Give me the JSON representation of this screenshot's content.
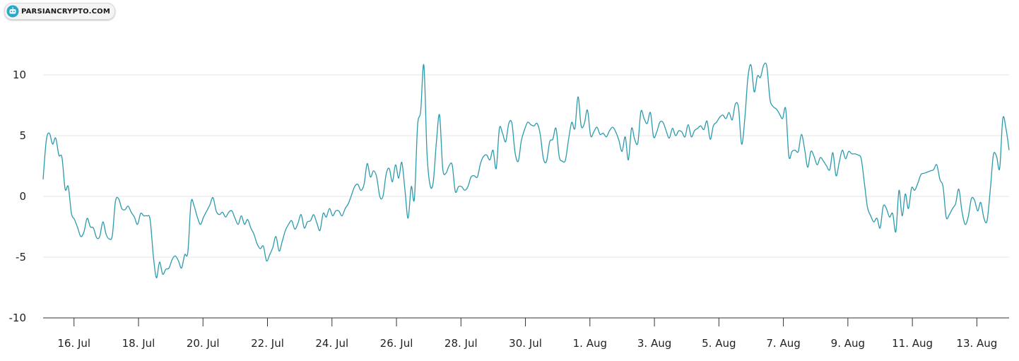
{
  "watermark": {
    "text": "PARSIANCRYPTO.COM",
    "icon": "robot-head-icon",
    "color": "#2aa7c9"
  },
  "chart_data": {
    "type": "line",
    "title": "",
    "xlabel": "",
    "ylabel": "",
    "line_color": "#2b9bab",
    "grid": true,
    "ylim": [
      -10,
      12
    ],
    "yticks": [
      -10,
      -5,
      0,
      5,
      10
    ],
    "xticks": [
      "16. Jul",
      "18. Jul",
      "20. Jul",
      "22. Jul",
      "24. Jul",
      "26. Jul",
      "28. Jul",
      "30. Jul",
      "1. Aug",
      "3. Aug",
      "5. Aug",
      "7. Aug",
      "9. Aug",
      "11. Aug",
      "13. Aug"
    ],
    "x_start": "2023-07-15T01:00",
    "x_end": "2023-08-14T00:00",
    "series": [
      {
        "values": [
          1.4,
          4.6,
          5.2,
          4.3,
          4.8,
          3.4,
          3.2,
          0.6,
          0.8,
          -1.4,
          -1.9,
          -2.6,
          -3.3,
          -2.9,
          -1.8,
          -2.5,
          -2.6,
          -3.4,
          -3.3,
          -2.1,
          -3.1,
          -3.5,
          -3.2,
          -0.4,
          -0.2,
          -1.0,
          -1.1,
          -0.8,
          -1.3,
          -1.7,
          -2.3,
          -1.4,
          -1.6,
          -1.6,
          -1.9,
          -4.8,
          -6.7,
          -5.4,
          -6.4,
          -6.0,
          -5.9,
          -5.2,
          -4.9,
          -5.3,
          -5.9,
          -4.8,
          -4.6,
          -0.5,
          -0.8,
          -1.7,
          -2.3,
          -1.7,
          -1.2,
          -0.7,
          -0.1,
          -1.2,
          -1.5,
          -1.3,
          -1.7,
          -1.3,
          -1.2,
          -1.8,
          -2.3,
          -1.6,
          -2.3,
          -1.9,
          -2.6,
          -3.1,
          -3.9,
          -4.3,
          -4.1,
          -5.3,
          -4.8,
          -4.2,
          -3.3,
          -4.5,
          -3.7,
          -2.8,
          -2.3,
          -2.0,
          -2.7,
          -2.2,
          -1.5,
          -2.6,
          -2.1,
          -2.0,
          -1.5,
          -2.2,
          -2.8,
          -1.4,
          -1.7,
          -1.0,
          -1.6,
          -1.2,
          -1.2,
          -1.6,
          -1.0,
          -0.6,
          0.1,
          0.8,
          1.0,
          0.5,
          1.0,
          2.7,
          1.6,
          2.1,
          1.6,
          0.0,
          0.0,
          1.8,
          2.3,
          1.2,
          2.6,
          1.5,
          2.8,
          0.5,
          -1.8,
          0.8,
          -0.2,
          5.8,
          7.0,
          10.8,
          3.6,
          0.9,
          1.2,
          4.5,
          6.7,
          2.3,
          1.9,
          2.5,
          2.6,
          0.4,
          0.8,
          0.8,
          0.5,
          0.8,
          1.6,
          1.7,
          1.6,
          2.7,
          3.3,
          3.4,
          3.0,
          3.8,
          2.3,
          5.6,
          5.2,
          4.5,
          6.0,
          6.0,
          3.6,
          2.9,
          4.6,
          5.5,
          6.1,
          5.9,
          5.8,
          6.0,
          5.1,
          3.1,
          2.9,
          4.5,
          4.7,
          5.6,
          3.3,
          2.9,
          3.0,
          4.7,
          6.1,
          5.6,
          8.2,
          5.8,
          6.0,
          7.1,
          5.0,
          5.3,
          5.7,
          5.1,
          5.2,
          4.9,
          5.4,
          5.7,
          5.3,
          4.6,
          3.7,
          4.9,
          3.0,
          5.6,
          4.7,
          4.4,
          7.0,
          6.4,
          6.0,
          6.9,
          4.9,
          5.3,
          6.1,
          6.1,
          5.4,
          4.8,
          5.6,
          5.0,
          5.4,
          5.3,
          4.9,
          5.9,
          4.9,
          5.4,
          5.6,
          5.8,
          5.5,
          6.2,
          4.7,
          5.8,
          6.1,
          6.5,
          6.7,
          6.4,
          6.9,
          6.3,
          7.6,
          7.3,
          4.3,
          6.4,
          9.8,
          10.8,
          8.6,
          9.9,
          9.8,
          10.8,
          10.7,
          8.0,
          7.4,
          7.2,
          6.8,
          6.4,
          7.2,
          3.3,
          3.7,
          3.8,
          3.7,
          5.1,
          3.9,
          2.4,
          3.7,
          3.3,
          2.6,
          3.2,
          2.9,
          2.5,
          2.2,
          3.6,
          1.7,
          2.8,
          3.8,
          3.1,
          3.7,
          3.5,
          3.5,
          3.4,
          3.1,
          1.1,
          -0.9,
          -1.6,
          -2.1,
          -1.8,
          -2.6,
          -0.8,
          -1.0,
          -1.7,
          -1.4,
          -2.9,
          0.5,
          -1.6,
          0.2,
          -1.0,
          0.7,
          0.5,
          1.1,
          1.8,
          1.9,
          2.0,
          2.1,
          2.2,
          2.6,
          1.4,
          0.8,
          -1.7,
          -1.5,
          -1.0,
          -0.6,
          0.6,
          -1.2,
          -2.3,
          -1.7,
          -0.2,
          -0.3,
          -1.2,
          -0.5,
          -1.8,
          -2.0,
          0.5,
          3.4,
          3.3,
          2.3,
          6.4,
          5.6,
          3.8
        ]
      }
    ]
  }
}
